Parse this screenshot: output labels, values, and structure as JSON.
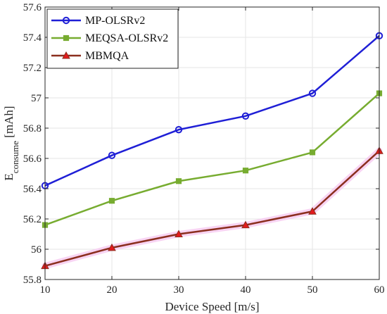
{
  "chart_data": {
    "type": "line",
    "title": "",
    "xlabel": "Device Speed [m/s]",
    "ylabel": {
      "main": "E",
      "sub": "consume",
      "unit": " [mAh]"
    },
    "x": [
      10,
      20,
      30,
      40,
      50,
      60
    ],
    "xticks": [
      "10",
      "20",
      "30",
      "40",
      "50",
      "60"
    ],
    "yticks": [
      "55.8",
      "56",
      "56.2",
      "56.4",
      "56.6",
      "56.8",
      "57",
      "57.2",
      "57.4",
      "57.6"
    ],
    "xlim": [
      10,
      60
    ],
    "ylim": [
      55.8,
      57.6
    ],
    "grid": true,
    "legend_position": "top-left",
    "series": [
      {
        "name": "MP-OLSRv2",
        "values": [
          56.42,
          56.62,
          56.79,
          56.88,
          57.03,
          57.41
        ],
        "color": "#1f1fd6",
        "marker": "circle"
      },
      {
        "name": "MEQSA-OLSRv2",
        "values": [
          56.16,
          56.32,
          56.45,
          56.52,
          56.64,
          57.03
        ],
        "color": "#77ac30",
        "marker": "square"
      },
      {
        "name": "MBMQA",
        "values": [
          55.89,
          56.01,
          56.1,
          56.16,
          56.25,
          56.65
        ],
        "color": "#e31a1c",
        "line_color": "#8b2e1e",
        "marker": "triangle"
      }
    ]
  }
}
